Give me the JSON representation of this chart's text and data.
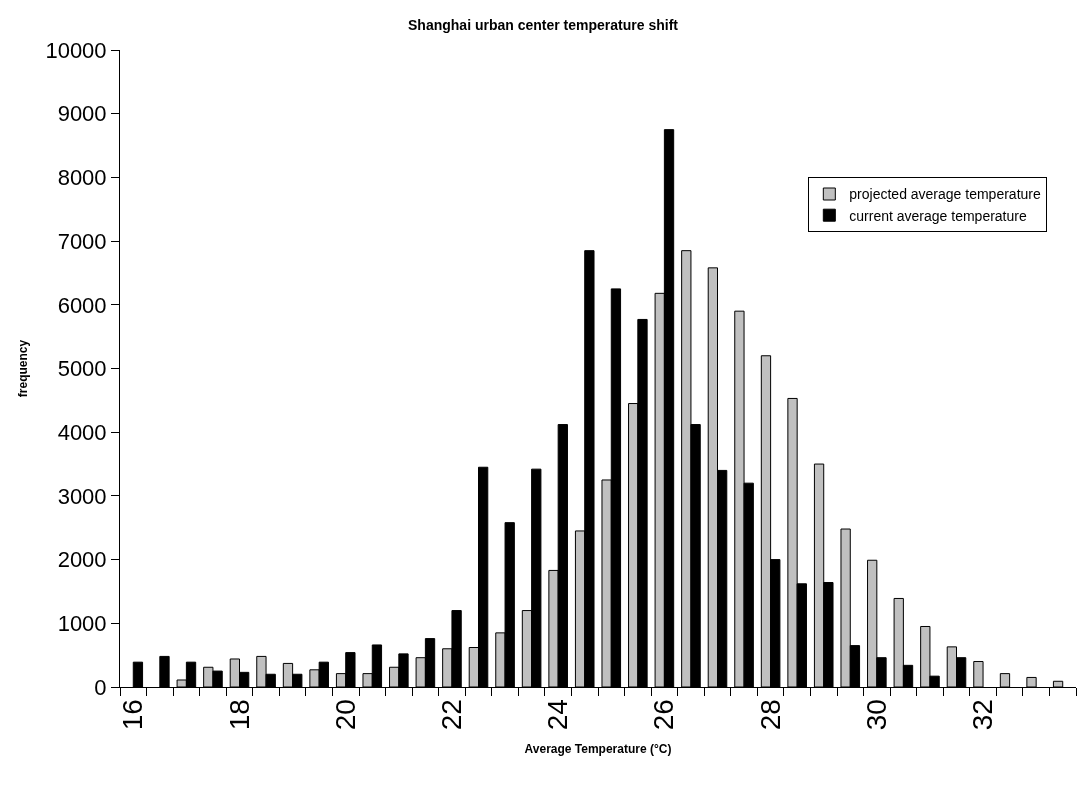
{
  "chart_data": {
    "type": "bar",
    "title": "Shanghai urban center temperature shift",
    "xlabel": "Average Temperature (°C)",
    "ylabel": "frequency",
    "categories": [
      "16",
      null,
      null,
      null,
      "18",
      null,
      null,
      null,
      "20",
      null,
      null,
      null,
      "22",
      null,
      null,
      null,
      "24",
      null,
      null,
      null,
      "26",
      null,
      null,
      null,
      "28",
      null,
      null,
      null,
      "30",
      null,
      null,
      null,
      "32",
      null,
      null,
      null
    ],
    "series": [
      {
        "name": "projected average temperature",
        "color": "#c0c0c0",
        "values": [
          null,
          null,
          110,
          310,
          440,
          480,
          370,
          270,
          210,
          210,
          310,
          460,
          600,
          620,
          850,
          1200,
          1830,
          2450,
          3250,
          4450,
          6180,
          6850,
          6580,
          5900,
          5200,
          4530,
          3500,
          2480,
          1990,
          1390,
          950,
          630,
          400,
          210,
          150,
          90
        ]
      },
      {
        "name": "current average temperature",
        "color": "#000000",
        "values": [
          390,
          480,
          390,
          250,
          230,
          200,
          200,
          390,
          540,
          660,
          520,
          760,
          1200,
          3450,
          2580,
          3420,
          4120,
          6850,
          6250,
          5770,
          8750,
          4120,
          3400,
          3200,
          2000,
          1620,
          1640,
          650,
          460,
          340,
          170,
          460,
          null,
          null,
          null,
          null
        ]
      }
    ],
    "ylim": [
      0,
      10000
    ],
    "yticks": [
      0,
      1000,
      2000,
      3000,
      4000,
      5000,
      6000,
      7000,
      8000,
      9000,
      10000
    ],
    "legend": "top right"
  }
}
